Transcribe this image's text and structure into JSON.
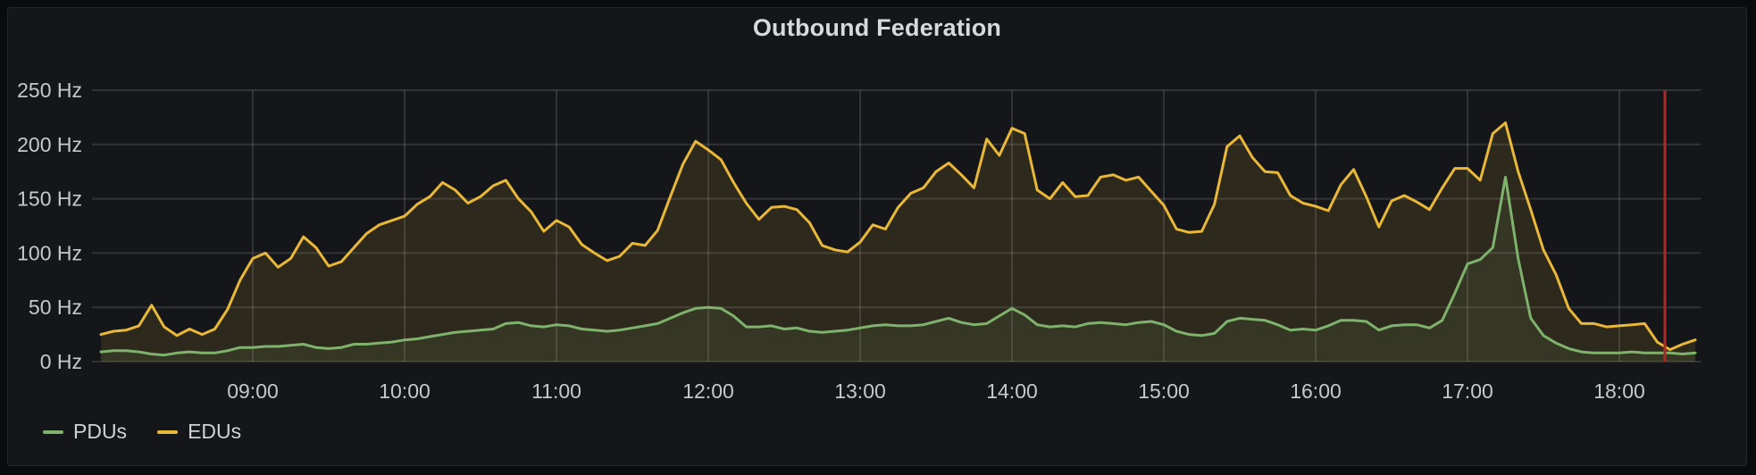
{
  "panel": {
    "title": "Outbound Federation"
  },
  "colors": {
    "page_background": "#0a0b0d",
    "panel_background": "#141619",
    "panel_border": "#23252b",
    "grid": "rgba(204,204,220,0.16)",
    "axis_text": "#c7c8cc",
    "title_text": "#d8d9da",
    "legend_text": "#d0d1d6",
    "pdus": "#7eb26d",
    "edus": "#eab839",
    "annotation": "#a92b28"
  },
  "chart_data": {
    "type": "line",
    "title": "Outbound Federation",
    "unit": "Hz",
    "grid": true,
    "legend_position": "bottom-left",
    "x_start": "08:00",
    "x_end": "18:30",
    "step_minutes": 5,
    "ylim": [
      0,
      250
    ],
    "y_ticks": [
      {
        "value": 0,
        "label": "0 Hz"
      },
      {
        "value": 50,
        "label": "50 Hz"
      },
      {
        "value": 100,
        "label": "100 Hz"
      },
      {
        "value": 150,
        "label": "150 Hz"
      },
      {
        "value": 200,
        "label": "200 Hz"
      },
      {
        "value": 250,
        "label": "250 Hz"
      }
    ],
    "x_ticks": [
      {
        "minutes": 60,
        "label": "09:00"
      },
      {
        "minutes": 120,
        "label": "10:00"
      },
      {
        "minutes": 180,
        "label": "11:00"
      },
      {
        "minutes": 240,
        "label": "12:00"
      },
      {
        "minutes": 300,
        "label": "13:00"
      },
      {
        "minutes": 360,
        "label": "14:00"
      },
      {
        "minutes": 420,
        "label": "15:00"
      },
      {
        "minutes": 480,
        "label": "16:00"
      },
      {
        "minutes": 540,
        "label": "17:00"
      },
      {
        "minutes": 600,
        "label": "18:00"
      }
    ],
    "annotation": {
      "time": "18:18",
      "minutes": 618,
      "color": "#a92b28"
    },
    "series": [
      {
        "name": "PDUs",
        "color": "#7eb26d",
        "fill_opacity": 0.1,
        "line_width": 3,
        "values": [
          9,
          10,
          10,
          9,
          7,
          6,
          8,
          9,
          8,
          8,
          10,
          13,
          13,
          14,
          14,
          15,
          16,
          13,
          12,
          13,
          16,
          16,
          17,
          18,
          20,
          21,
          23,
          25,
          27,
          28,
          29,
          30,
          35,
          36,
          33,
          32,
          34,
          33,
          30,
          29,
          28,
          29,
          31,
          33,
          35,
          40,
          45,
          49,
          50,
          49,
          42,
          32,
          32,
          33,
          30,
          31,
          28,
          27,
          28,
          29,
          31,
          33,
          34,
          33,
          33,
          34,
          37,
          40,
          36,
          34,
          35,
          42,
          49,
          43,
          34,
          32,
          33,
          32,
          35,
          36,
          35,
          34,
          36,
          37,
          34,
          28,
          25,
          24,
          26,
          37,
          40,
          39,
          38,
          34,
          29,
          30,
          29,
          33,
          38,
          38,
          37,
          29,
          33,
          34,
          34,
          31,
          38,
          63,
          90,
          94,
          105,
          170,
          95,
          40,
          24,
          17,
          12,
          9,
          8,
          8,
          8,
          9,
          8,
          8,
          8,
          7,
          8
        ]
      },
      {
        "name": "EDUs",
        "color": "#eab839",
        "fill_opacity": 0.12,
        "line_width": 3,
        "values": [
          25,
          28,
          29,
          33,
          52,
          32,
          24,
          30,
          25,
          30,
          48,
          75,
          95,
          100,
          87,
          95,
          115,
          105,
          88,
          92,
          105,
          118,
          126,
          130,
          134,
          145,
          152,
          165,
          158,
          146,
          152,
          162,
          167,
          150,
          138,
          120,
          130,
          124,
          108,
          100,
          93,
          97,
          109,
          107,
          121,
          152,
          182,
          203,
          195,
          186,
          165,
          146,
          131,
          142,
          143,
          140,
          128,
          107,
          103,
          101,
          110,
          126,
          122,
          142,
          155,
          160,
          175,
          183,
          172,
          160,
          205,
          190,
          215,
          210,
          158,
          150,
          165,
          152,
          153,
          170,
          172,
          167,
          170,
          157,
          144,
          122,
          119,
          120,
          145,
          198,
          208,
          188,
          175,
          174,
          153,
          146,
          143,
          139,
          163,
          177,
          152,
          124,
          148,
          153,
          147,
          140,
          160,
          178,
          178,
          167,
          210,
          220,
          175,
          140,
          103,
          80,
          49,
          35,
          35,
          32,
          33,
          34,
          35,
          18,
          11,
          16,
          20
        ]
      }
    ]
  }
}
